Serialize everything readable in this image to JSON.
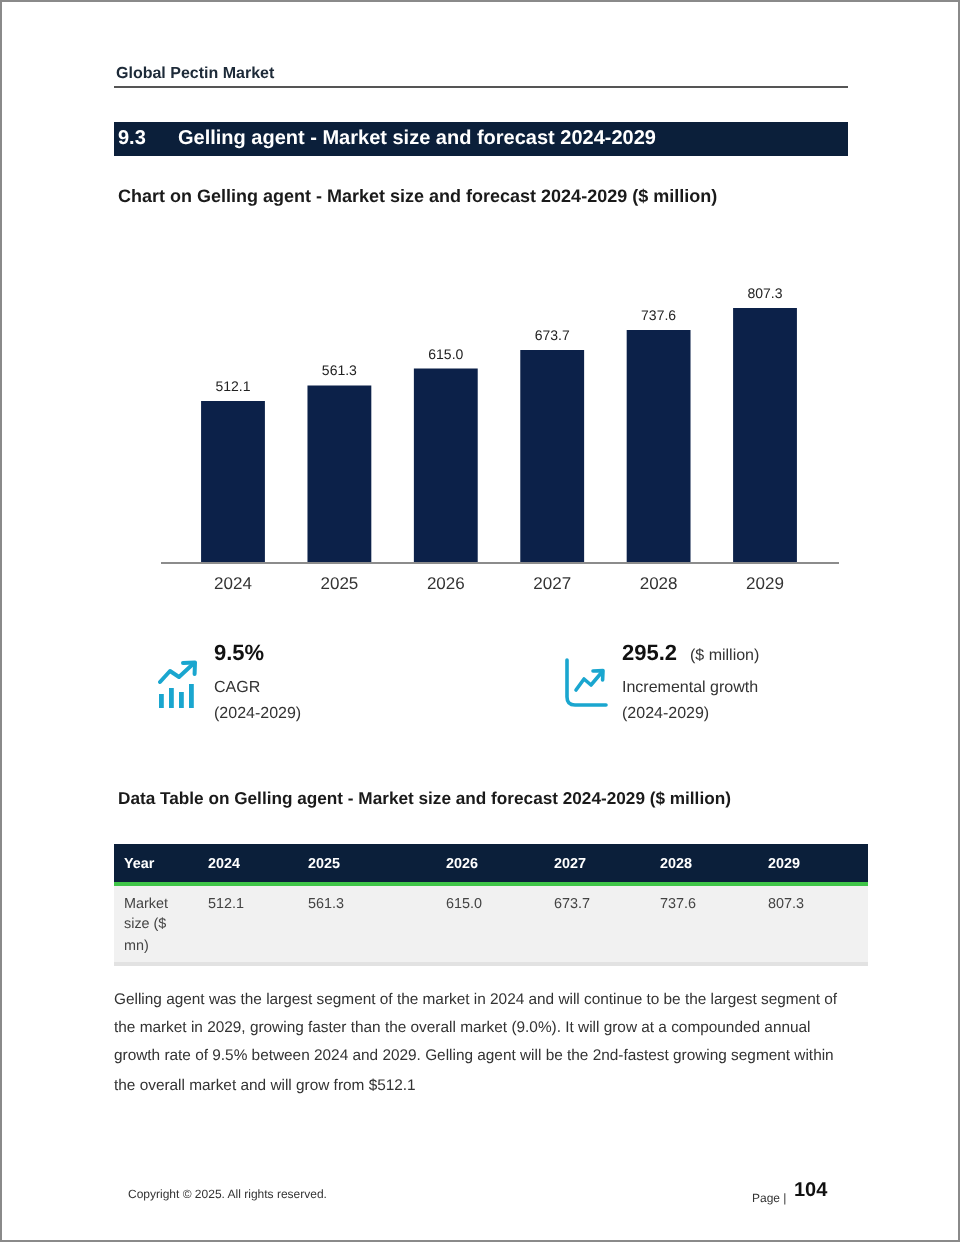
{
  "chart_data": {
    "type": "bar",
    "title": "Chart on Gelling agent - Market size and forecast 2024-2029 ($ million)",
    "categories": [
      "2024",
      "2025",
      "2026",
      "2027",
      "2028",
      "2029"
    ],
    "values": [
      512.1,
      561.3,
      615.0,
      673.7,
      737.6,
      807.3
    ],
    "value_labels": [
      "512.1",
      "561.3",
      "615.0",
      "673.7",
      "737.6",
      "807.3"
    ],
    "color": "#0c2149",
    "tick_labels": "x",
    "annotations": [
      "Global Pectin Market",
      "9.3",
      "Gelling agent - Market size and forecast 2024-2029",
      "9.5%",
      "CAGR",
      "(2024-2029)",
      "295.2",
      "($ million)",
      "Incremental growth",
      "(2024-2029)",
      "Data Table on Gelling agent - Market size and forecast 2024-2029 ($ million)",
      "Year",
      "Market size ($ mn)",
      "Gelling agent was the largest segment of the market in 2024 and will continue to be the largest segment of the market in 2029, growing faster than the overall market (9.0%). It will grow at a compounded annual growth rate of 9.5% between 2024 and 2029. Gelling agent will be the 2nd-fastest growing segment within the overall market and will grow from $512.1",
      "Copyright © 2025. All rights reserved.",
      "Page |",
      "104"
    ]
  }
}
